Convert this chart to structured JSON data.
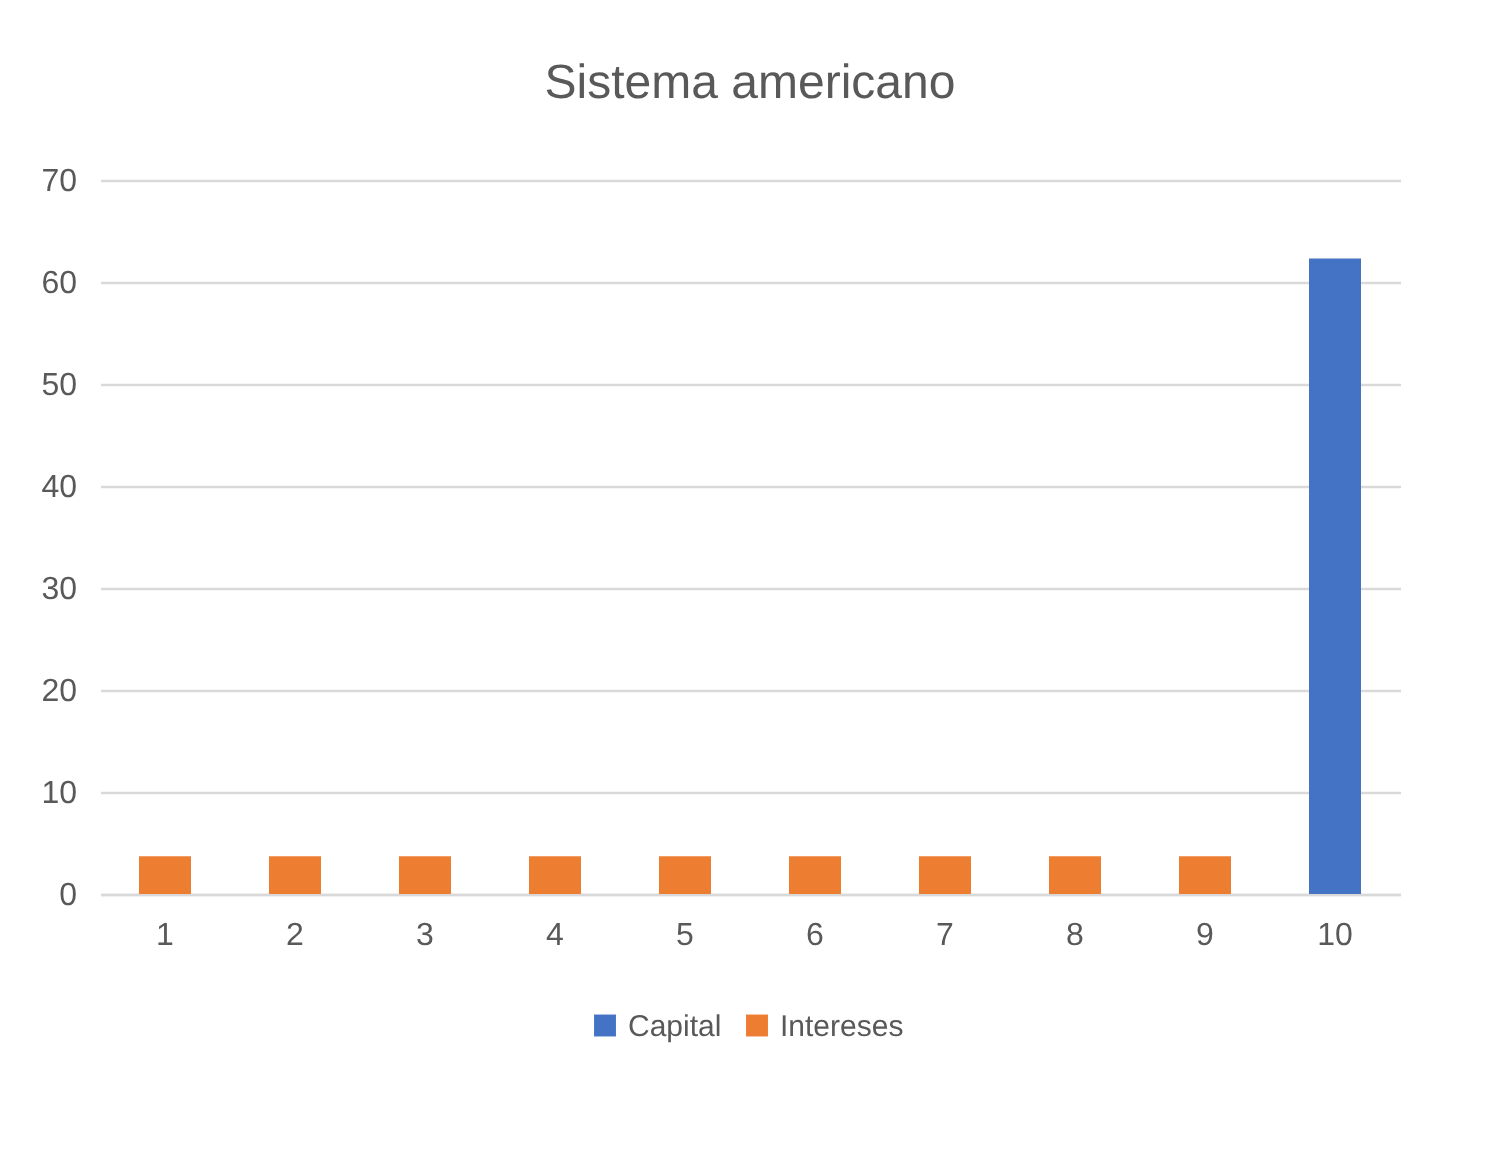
{
  "chart_data": {
    "type": "bar",
    "title": "Sistema americano",
    "categories": [
      "1",
      "2",
      "3",
      "4",
      "5",
      "6",
      "7",
      "8",
      "9",
      "10"
    ],
    "series": [
      {
        "name": "Capital",
        "color": "#4472c4",
        "values": [
          null,
          null,
          null,
          null,
          null,
          null,
          null,
          null,
          null,
          62.3
        ]
      },
      {
        "name": "Intereses",
        "color": "#ed7d31",
        "values": [
          3.7,
          3.7,
          3.7,
          3.7,
          3.7,
          3.7,
          3.7,
          3.7,
          3.7,
          null
        ]
      }
    ],
    "ylim": [
      0,
      70
    ],
    "yticks": [
      0,
      10,
      20,
      30,
      40,
      50,
      60,
      70
    ],
    "grid": "y",
    "legend": "bottom"
  }
}
